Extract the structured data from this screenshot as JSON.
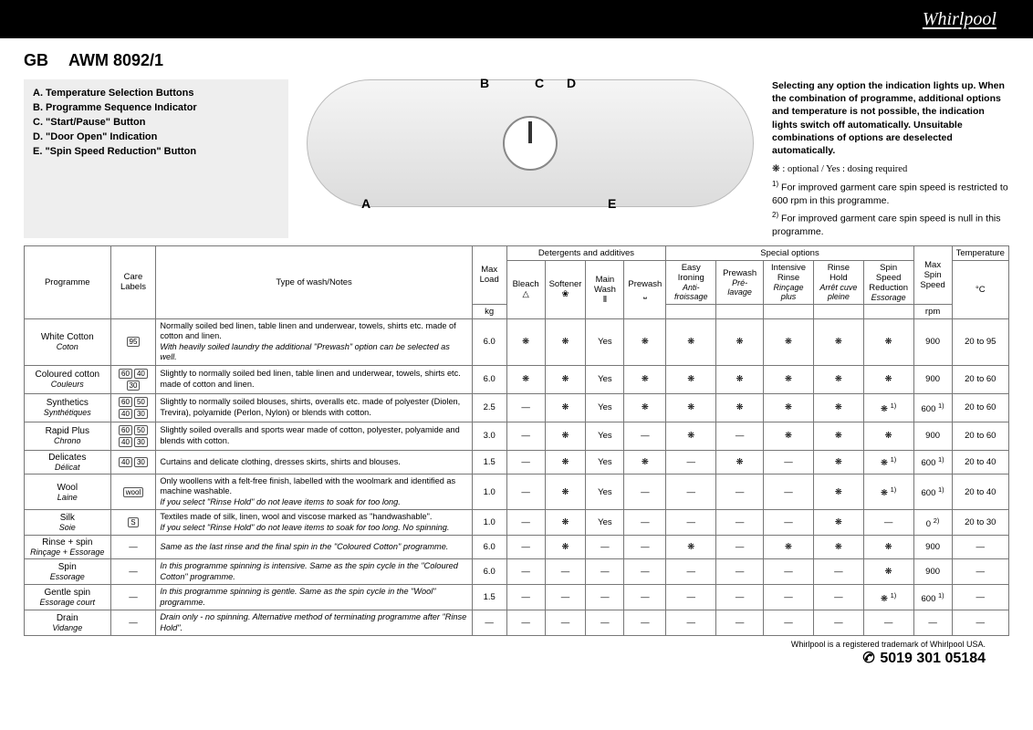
{
  "brand": "Whirlpool",
  "country": "GB",
  "model": "AWM 8092/1",
  "legend": [
    "A. Temperature Selection Buttons",
    "B. Programme Sequence Indicator",
    "C. \"Start/Pause\" Button",
    "D. \"Door Open\" Indication",
    "E. \"Spin Speed Reduction\" Button"
  ],
  "callouts": [
    "A",
    "B",
    "C",
    "D",
    "E"
  ],
  "side": {
    "intro": "Selecting any option the indication lights up. When the combination of programme, additional options and temperature is not possible, the indication lights switch off automatically. Unsuitable combinations of options are deselected automatically.",
    "opt_line": "❋ : optional / Yes : dosing required",
    "fn1": "For improved garment care spin speed is restricted to 600 rpm in this programme.",
    "fn2": "For improved garment care spin speed is null in this programme."
  },
  "headers": {
    "programme": "Programme",
    "care": "Care Labels",
    "type": "Type of wash/Notes",
    "maxload": "Max Load",
    "kg": "kg",
    "det_group": "Detergents and additives",
    "bleach": "Bleach",
    "softener": "Softener",
    "mainwash": "Main Wash",
    "prewash": "Prewash",
    "spec_group": "Special options",
    "easy": "Easy Ironing",
    "easy_fr": "Anti-froissage",
    "prewash2": "Prewash",
    "prewash2_fr": "Pré-lavage",
    "intrinse": "Intensive Rinse",
    "intrinse_fr": "Rinçage plus",
    "rinsehold": "Rinse Hold",
    "rinsehold_fr": "Arrêt cuve pleine",
    "spinred": "Spin Speed Reduction",
    "spinred_fr": "Essorage",
    "maxspin": "Max Spin Speed",
    "rpm": "rpm",
    "temp": "Temperature",
    "degc": "°C"
  },
  "rows": [
    {
      "en": "White Cotton",
      "fr": "Coton",
      "care": [
        "95"
      ],
      "notes": "Normally soiled bed linen, table linen and underwear, towels, shirts etc. made of cotton and linen.",
      "notes_ital": "With heavily soiled laundry the additional \"Prewash\" option can be selected as well.",
      "load": "6.0",
      "bleach": "❋",
      "soft": "❋",
      "main": "Yes",
      "pre": "❋",
      "easy": "❋",
      "pre2": "❋",
      "ir": "❋",
      "rh": "❋",
      "sr": "❋",
      "rpm": "900",
      "rpm_sup": "",
      "temp": "20 to 95"
    },
    {
      "en": "Coloured cotton",
      "fr": "Couleurs",
      "care": [
        "60",
        "40",
        "30"
      ],
      "notes": "Slightly to normally soiled bed linen, table linen and underwear, towels, shirts etc. made of cotton and linen.",
      "notes_ital": "",
      "load": "6.0",
      "bleach": "❋",
      "soft": "❋",
      "main": "Yes",
      "pre": "❋",
      "easy": "❋",
      "pre2": "❋",
      "ir": "❋",
      "rh": "❋",
      "sr": "❋",
      "rpm": "900",
      "rpm_sup": "",
      "temp": "20 to 60"
    },
    {
      "en": "Synthetics",
      "fr": "Synthétiques",
      "care": [
        "60",
        "50",
        "40",
        "30"
      ],
      "notes": "Slightly to normally soiled blouses, shirts, overalls etc. made of polyester (Diolen, Trevira), polyamide (Perlon, Nylon) or blends with cotton.",
      "notes_ital": "",
      "load": "2.5",
      "bleach": "—",
      "soft": "❋",
      "main": "Yes",
      "pre": "❋",
      "easy": "❋",
      "pre2": "❋",
      "ir": "❋",
      "rh": "❋",
      "sr": "❋",
      "sr_sup": "1)",
      "rpm": "600",
      "rpm_sup": "1)",
      "temp": "20 to 60"
    },
    {
      "en": "Rapid Plus",
      "fr": "Chrono",
      "care": [
        "60",
        "50",
        "40",
        "30"
      ],
      "notes": "Slightly soiled overalls and sports wear made of cotton, polyester, polyamide and blends with cotton.",
      "notes_ital": "",
      "load": "3.0",
      "bleach": "—",
      "soft": "❋",
      "main": "Yes",
      "pre": "—",
      "easy": "❋",
      "pre2": "—",
      "ir": "❋",
      "rh": "❋",
      "sr": "❋",
      "rpm": "900",
      "rpm_sup": "",
      "temp": "20 to 60"
    },
    {
      "en": "Delicates",
      "fr": "Délicat",
      "care": [
        "40",
        "30"
      ],
      "notes": "Curtains and delicate clothing, dresses skirts, shirts and blouses.",
      "notes_ital": "",
      "load": "1.5",
      "bleach": "—",
      "soft": "❋",
      "main": "Yes",
      "pre": "❋",
      "easy": "—",
      "pre2": "❋",
      "ir": "—",
      "rh": "❋",
      "sr": "❋",
      "sr_sup": "1)",
      "rpm": "600",
      "rpm_sup": "1)",
      "temp": "20 to 40"
    },
    {
      "en": "Wool",
      "fr": "Laine",
      "care": [
        "wool"
      ],
      "notes": "Only woollens with a felt-free finish, labelled with the woolmark and identified as machine washable.",
      "notes_ital": "If you select \"Rinse Hold\" do not leave items to soak for too long.",
      "load": "1.0",
      "bleach": "—",
      "soft": "❋",
      "main": "Yes",
      "pre": "—",
      "easy": "—",
      "pre2": "—",
      "ir": "—",
      "rh": "❋",
      "sr": "❋",
      "sr_sup": "1)",
      "rpm": "600",
      "rpm_sup": "1)",
      "temp": "20 to 40"
    },
    {
      "en": "Silk",
      "fr": "Soie",
      "care": [
        "S"
      ],
      "notes": "Textiles made of silk, linen, wool and viscose marked as \"handwashable\".",
      "notes_ital": "If you select \"Rinse Hold\" do not leave items to soak for too long. No spinning.",
      "load": "1.0",
      "bleach": "—",
      "soft": "❋",
      "main": "Yes",
      "pre": "—",
      "easy": "—",
      "pre2": "—",
      "ir": "—",
      "rh": "❋",
      "sr": "—",
      "rpm": "0",
      "rpm_sup": "2)",
      "temp": "20 to 30"
    },
    {
      "en": "Rinse + spin",
      "fr": "Rinçage + Essorage",
      "care": [
        "—"
      ],
      "notes": "",
      "notes_ital": "Same as the last rinse and the final spin in the \"Coloured Cotton\" programme.",
      "load": "6.0",
      "bleach": "—",
      "soft": "❋",
      "main": "—",
      "pre": "—",
      "easy": "❋",
      "pre2": "—",
      "ir": "❋",
      "rh": "❋",
      "sr": "❋",
      "rpm": "900",
      "rpm_sup": "",
      "temp": "—"
    },
    {
      "en": "Spin",
      "fr": "Essorage",
      "care": [
        "—"
      ],
      "notes": "",
      "notes_ital": "In this programme spinning is intensive. Same as the spin cycle in the \"Coloured Cotton\" programme.",
      "load": "6.0",
      "bleach": "—",
      "soft": "—",
      "main": "—",
      "pre": "—",
      "easy": "—",
      "pre2": "—",
      "ir": "—",
      "rh": "—",
      "sr": "❋",
      "rpm": "900",
      "rpm_sup": "",
      "temp": "—"
    },
    {
      "en": "Gentle spin",
      "fr": "Essorage court",
      "care": [
        "—"
      ],
      "notes": "",
      "notes_ital": "In this programme spinning is gentle. Same as the spin cycle in the \"Wool\" programme.",
      "load": "1.5",
      "bleach": "—",
      "soft": "—",
      "main": "—",
      "pre": "—",
      "easy": "—",
      "pre2": "—",
      "ir": "—",
      "rh": "—",
      "sr": "❋",
      "sr_sup": "1)",
      "rpm": "600",
      "rpm_sup": "1)",
      "temp": "—"
    },
    {
      "en": "Drain",
      "fr": "Vidange",
      "care": [
        "—"
      ],
      "notes": "",
      "notes_ital": "Drain only - no spinning. Alternative method of terminating programme after \"Rinse Hold\".",
      "load": "—",
      "bleach": "—",
      "soft": "—",
      "main": "—",
      "pre": "—",
      "easy": "—",
      "pre2": "—",
      "ir": "—",
      "rh": "—",
      "sr": "—",
      "rpm": "—",
      "rpm_sup": "",
      "temp": "—"
    }
  ],
  "footer": {
    "trademark": "Whirlpool is a registered trademark of Whirlpool USA.",
    "partno": "5019 301 05184"
  },
  "colors": {
    "border": "#777",
    "legend_bg": "#eeeeee"
  },
  "colwidths": {
    "prog": 95,
    "care": 50,
    "notes": 350,
    "load": 38,
    "det": 42,
    "spec": 52,
    "rpm": 42,
    "temp": 60
  }
}
